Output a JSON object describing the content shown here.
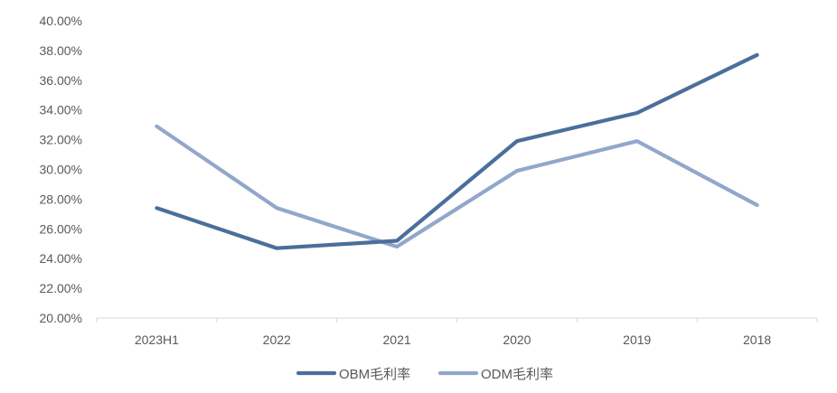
{
  "chart_data": {
    "type": "line",
    "categories": [
      "2023H1",
      "2022",
      "2021",
      "2020",
      "2019",
      "2018"
    ],
    "series": [
      {
        "name": "OBM毛利率",
        "color": "#4a6f9c",
        "values": [
          27.4,
          24.7,
          25.2,
          31.9,
          33.8,
          37.7
        ]
      },
      {
        "name": "ODM毛利率",
        "color": "#91a7cb",
        "values": [
          32.9,
          27.4,
          24.8,
          29.9,
          31.9,
          27.6
        ]
      }
    ],
    "yticks": [
      "20.00%",
      "22.00%",
      "24.00%",
      "26.00%",
      "28.00%",
      "30.00%",
      "32.00%",
      "34.00%",
      "36.00%",
      "38.00%",
      "40.00%"
    ],
    "ylim": [
      20,
      40
    ],
    "grid": false,
    "legend_position": "bottom-center",
    "title": "",
    "xlabel": "",
    "ylabel": ""
  }
}
